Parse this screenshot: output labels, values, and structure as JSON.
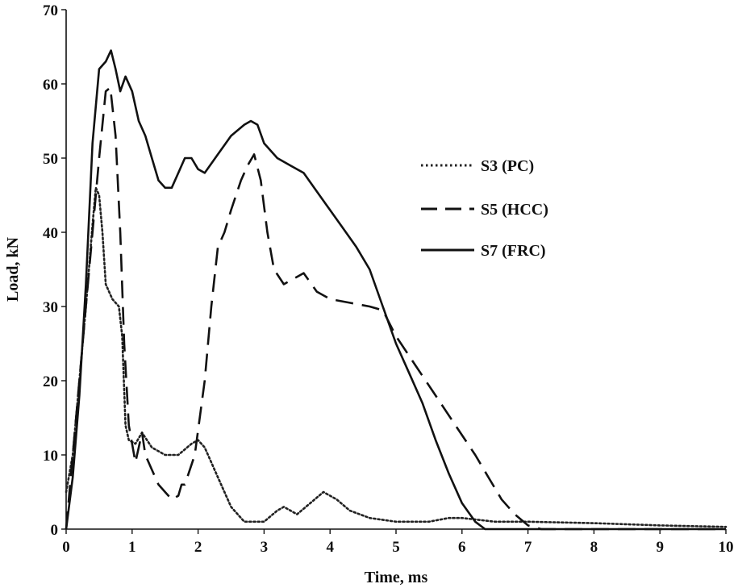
{
  "chart_data": {
    "type": "line",
    "title": "",
    "xlabel": "Time, ms",
    "ylabel": "Load, kN",
    "xlim": [
      0,
      10
    ],
    "ylim": [
      0,
      70
    ],
    "xticks": [
      0,
      1,
      2,
      3,
      4,
      5,
      6,
      7,
      8,
      9,
      10
    ],
    "yticks": [
      0,
      10,
      20,
      30,
      40,
      50,
      60,
      70
    ],
    "grid": false,
    "legend_position": "right",
    "series": [
      {
        "name": "S3 (PC)",
        "style": "dotted",
        "color": "#222222",
        "points": [
          [
            0,
            5
          ],
          [
            0.1,
            10
          ],
          [
            0.2,
            20
          ],
          [
            0.3,
            30
          ],
          [
            0.4,
            41
          ],
          [
            0.45,
            46
          ],
          [
            0.5,
            45
          ],
          [
            0.55,
            40
          ],
          [
            0.6,
            33
          ],
          [
            0.7,
            31
          ],
          [
            0.8,
            30
          ],
          [
            0.85,
            26
          ],
          [
            0.9,
            14
          ],
          [
            0.95,
            12
          ],
          [
            1.05,
            11.5
          ],
          [
            1.15,
            13
          ],
          [
            1.3,
            11
          ],
          [
            1.5,
            10
          ],
          [
            1.7,
            10
          ],
          [
            1.9,
            11.5
          ],
          [
            2.0,
            12
          ],
          [
            2.1,
            11
          ],
          [
            2.3,
            7
          ],
          [
            2.5,
            3
          ],
          [
            2.7,
            1
          ],
          [
            3.0,
            1
          ],
          [
            3.2,
            2.5
          ],
          [
            3.3,
            3
          ],
          [
            3.5,
            2
          ],
          [
            3.7,
            3.5
          ],
          [
            3.9,
            5
          ],
          [
            4.1,
            4
          ],
          [
            4.3,
            2.5
          ],
          [
            4.6,
            1.5
          ],
          [
            5.0,
            1
          ],
          [
            5.5,
            1
          ],
          [
            5.8,
            1.5
          ],
          [
            6.0,
            1.5
          ],
          [
            6.5,
            1
          ],
          [
            7.0,
            1
          ],
          [
            8.0,
            0.8
          ],
          [
            9.0,
            0.5
          ],
          [
            10,
            0.3
          ]
        ]
      },
      {
        "name": "S5 (HCC)",
        "style": "dashed",
        "color": "#111111",
        "points": [
          [
            0,
            0
          ],
          [
            0.1,
            10
          ],
          [
            0.2,
            20
          ],
          [
            0.3,
            30
          ],
          [
            0.4,
            40
          ],
          [
            0.5,
            50
          ],
          [
            0.6,
            59
          ],
          [
            0.67,
            59.5
          ],
          [
            0.75,
            53
          ],
          [
            0.82,
            40
          ],
          [
            0.88,
            25
          ],
          [
            0.95,
            14
          ],
          [
            1.05,
            9
          ],
          [
            1.15,
            13
          ],
          [
            1.2,
            10
          ],
          [
            1.3,
            8
          ],
          [
            1.4,
            6
          ],
          [
            1.5,
            5
          ],
          [
            1.6,
            4
          ],
          [
            1.7,
            4.5
          ],
          [
            1.75,
            6
          ],
          [
            1.8,
            6
          ],
          [
            1.95,
            10
          ],
          [
            2.1,
            20
          ],
          [
            2.2,
            30
          ],
          [
            2.3,
            38
          ],
          [
            2.4,
            40
          ],
          [
            2.5,
            43
          ],
          [
            2.65,
            47
          ],
          [
            2.75,
            49
          ],
          [
            2.85,
            50.5
          ],
          [
            2.95,
            47
          ],
          [
            3.05,
            40
          ],
          [
            3.15,
            35
          ],
          [
            3.3,
            33
          ],
          [
            3.5,
            34
          ],
          [
            3.6,
            34.5
          ],
          [
            3.8,
            32
          ],
          [
            4.0,
            31
          ],
          [
            4.3,
            30.5
          ],
          [
            4.6,
            30
          ],
          [
            4.8,
            29.5
          ],
          [
            5.0,
            26
          ],
          [
            5.3,
            22
          ],
          [
            5.6,
            18
          ],
          [
            5.9,
            14
          ],
          [
            6.2,
            10
          ],
          [
            6.4,
            7
          ],
          [
            6.6,
            4
          ],
          [
            6.8,
            2
          ],
          [
            7.0,
            0.5
          ],
          [
            7.2,
            0
          ],
          [
            8.0,
            0
          ],
          [
            10,
            0
          ]
        ]
      },
      {
        "name": "S7 (FRC)",
        "style": "solid",
        "color": "#111111",
        "points": [
          [
            0,
            0
          ],
          [
            0.1,
            7
          ],
          [
            0.2,
            18
          ],
          [
            0.3,
            33
          ],
          [
            0.4,
            52
          ],
          [
            0.5,
            62
          ],
          [
            0.6,
            63
          ],
          [
            0.68,
            64.5
          ],
          [
            0.75,
            62
          ],
          [
            0.82,
            59
          ],
          [
            0.9,
            61
          ],
          [
            1.0,
            59
          ],
          [
            1.1,
            55
          ],
          [
            1.2,
            53
          ],
          [
            1.3,
            50
          ],
          [
            1.4,
            47
          ],
          [
            1.5,
            46
          ],
          [
            1.6,
            46
          ],
          [
            1.7,
            48
          ],
          [
            1.8,
            50
          ],
          [
            1.9,
            50
          ],
          [
            2.0,
            48.5
          ],
          [
            2.1,
            48
          ],
          [
            2.3,
            50.5
          ],
          [
            2.5,
            53
          ],
          [
            2.7,
            54.5
          ],
          [
            2.8,
            55
          ],
          [
            2.9,
            54.5
          ],
          [
            3.0,
            52
          ],
          [
            3.2,
            50
          ],
          [
            3.4,
            49
          ],
          [
            3.6,
            48
          ],
          [
            3.8,
            45.5
          ],
          [
            4.0,
            43
          ],
          [
            4.2,
            40.5
          ],
          [
            4.4,
            38
          ],
          [
            4.6,
            35
          ],
          [
            4.8,
            30
          ],
          [
            5.0,
            25
          ],
          [
            5.2,
            21
          ],
          [
            5.4,
            17
          ],
          [
            5.6,
            12
          ],
          [
            5.8,
            7.5
          ],
          [
            6.0,
            3.5
          ],
          [
            6.2,
            1
          ],
          [
            6.35,
            0
          ],
          [
            7.0,
            0
          ],
          [
            10,
            0
          ]
        ]
      }
    ]
  }
}
